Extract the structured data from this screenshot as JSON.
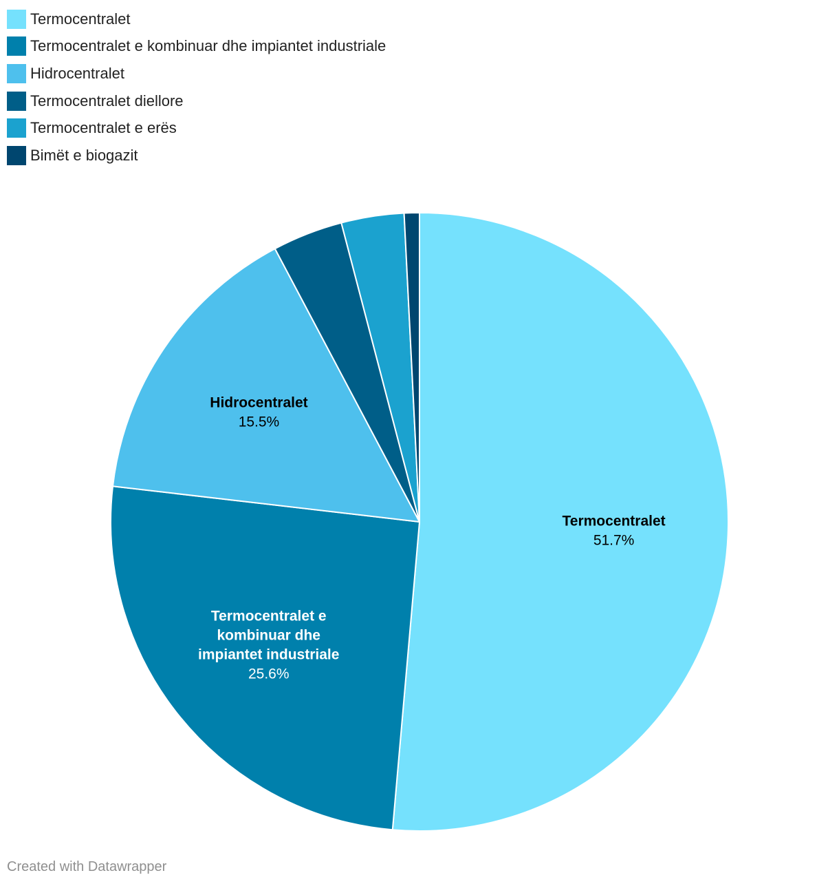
{
  "chart_data": {
    "type": "pie",
    "slices": [
      {
        "label": "Termocentralet",
        "value": 51.7,
        "value_label": "51.7%",
        "color": "#75e1fd",
        "text_color": "#000000",
        "inside_lines": [
          "Termocentralet"
        ],
        "show_inside": true
      },
      {
        "label": "Termocentralet e kombinuar dhe impiantet industriale",
        "value": 25.6,
        "value_label": "25.6%",
        "color": "#0080ac",
        "text_color": "#ffffff",
        "inside_lines": [
          "Termocentralet e",
          "kombinuar dhe",
          "impiantet industriale"
        ],
        "show_inside": true
      },
      {
        "label": "Hidrocentralet",
        "value": 15.5,
        "value_label": "15.5%",
        "color": "#4ec0ed",
        "text_color": "#000000",
        "inside_lines": [
          "Hidrocentralet"
        ],
        "show_inside": true
      },
      {
        "label": "Termocentralet diellore",
        "value": 3.7,
        "value_label": "",
        "color": "#005e88",
        "text_color": "#ffffff",
        "inside_lines": [],
        "show_inside": false
      },
      {
        "label": "Termocentralet e erës",
        "value": 3.3,
        "value_label": "",
        "color": "#1ba2cf",
        "text_color": "#ffffff",
        "inside_lines": [],
        "show_inside": false
      },
      {
        "label": "Bimët e biogazit",
        "value": 0.8,
        "value_label": "",
        "color": "#00466f",
        "text_color": "#ffffff",
        "inside_lines": [],
        "show_inside": false
      }
    ],
    "legend_position": "top-left"
  },
  "footer": {
    "credit": "Created with Datawrapper"
  }
}
